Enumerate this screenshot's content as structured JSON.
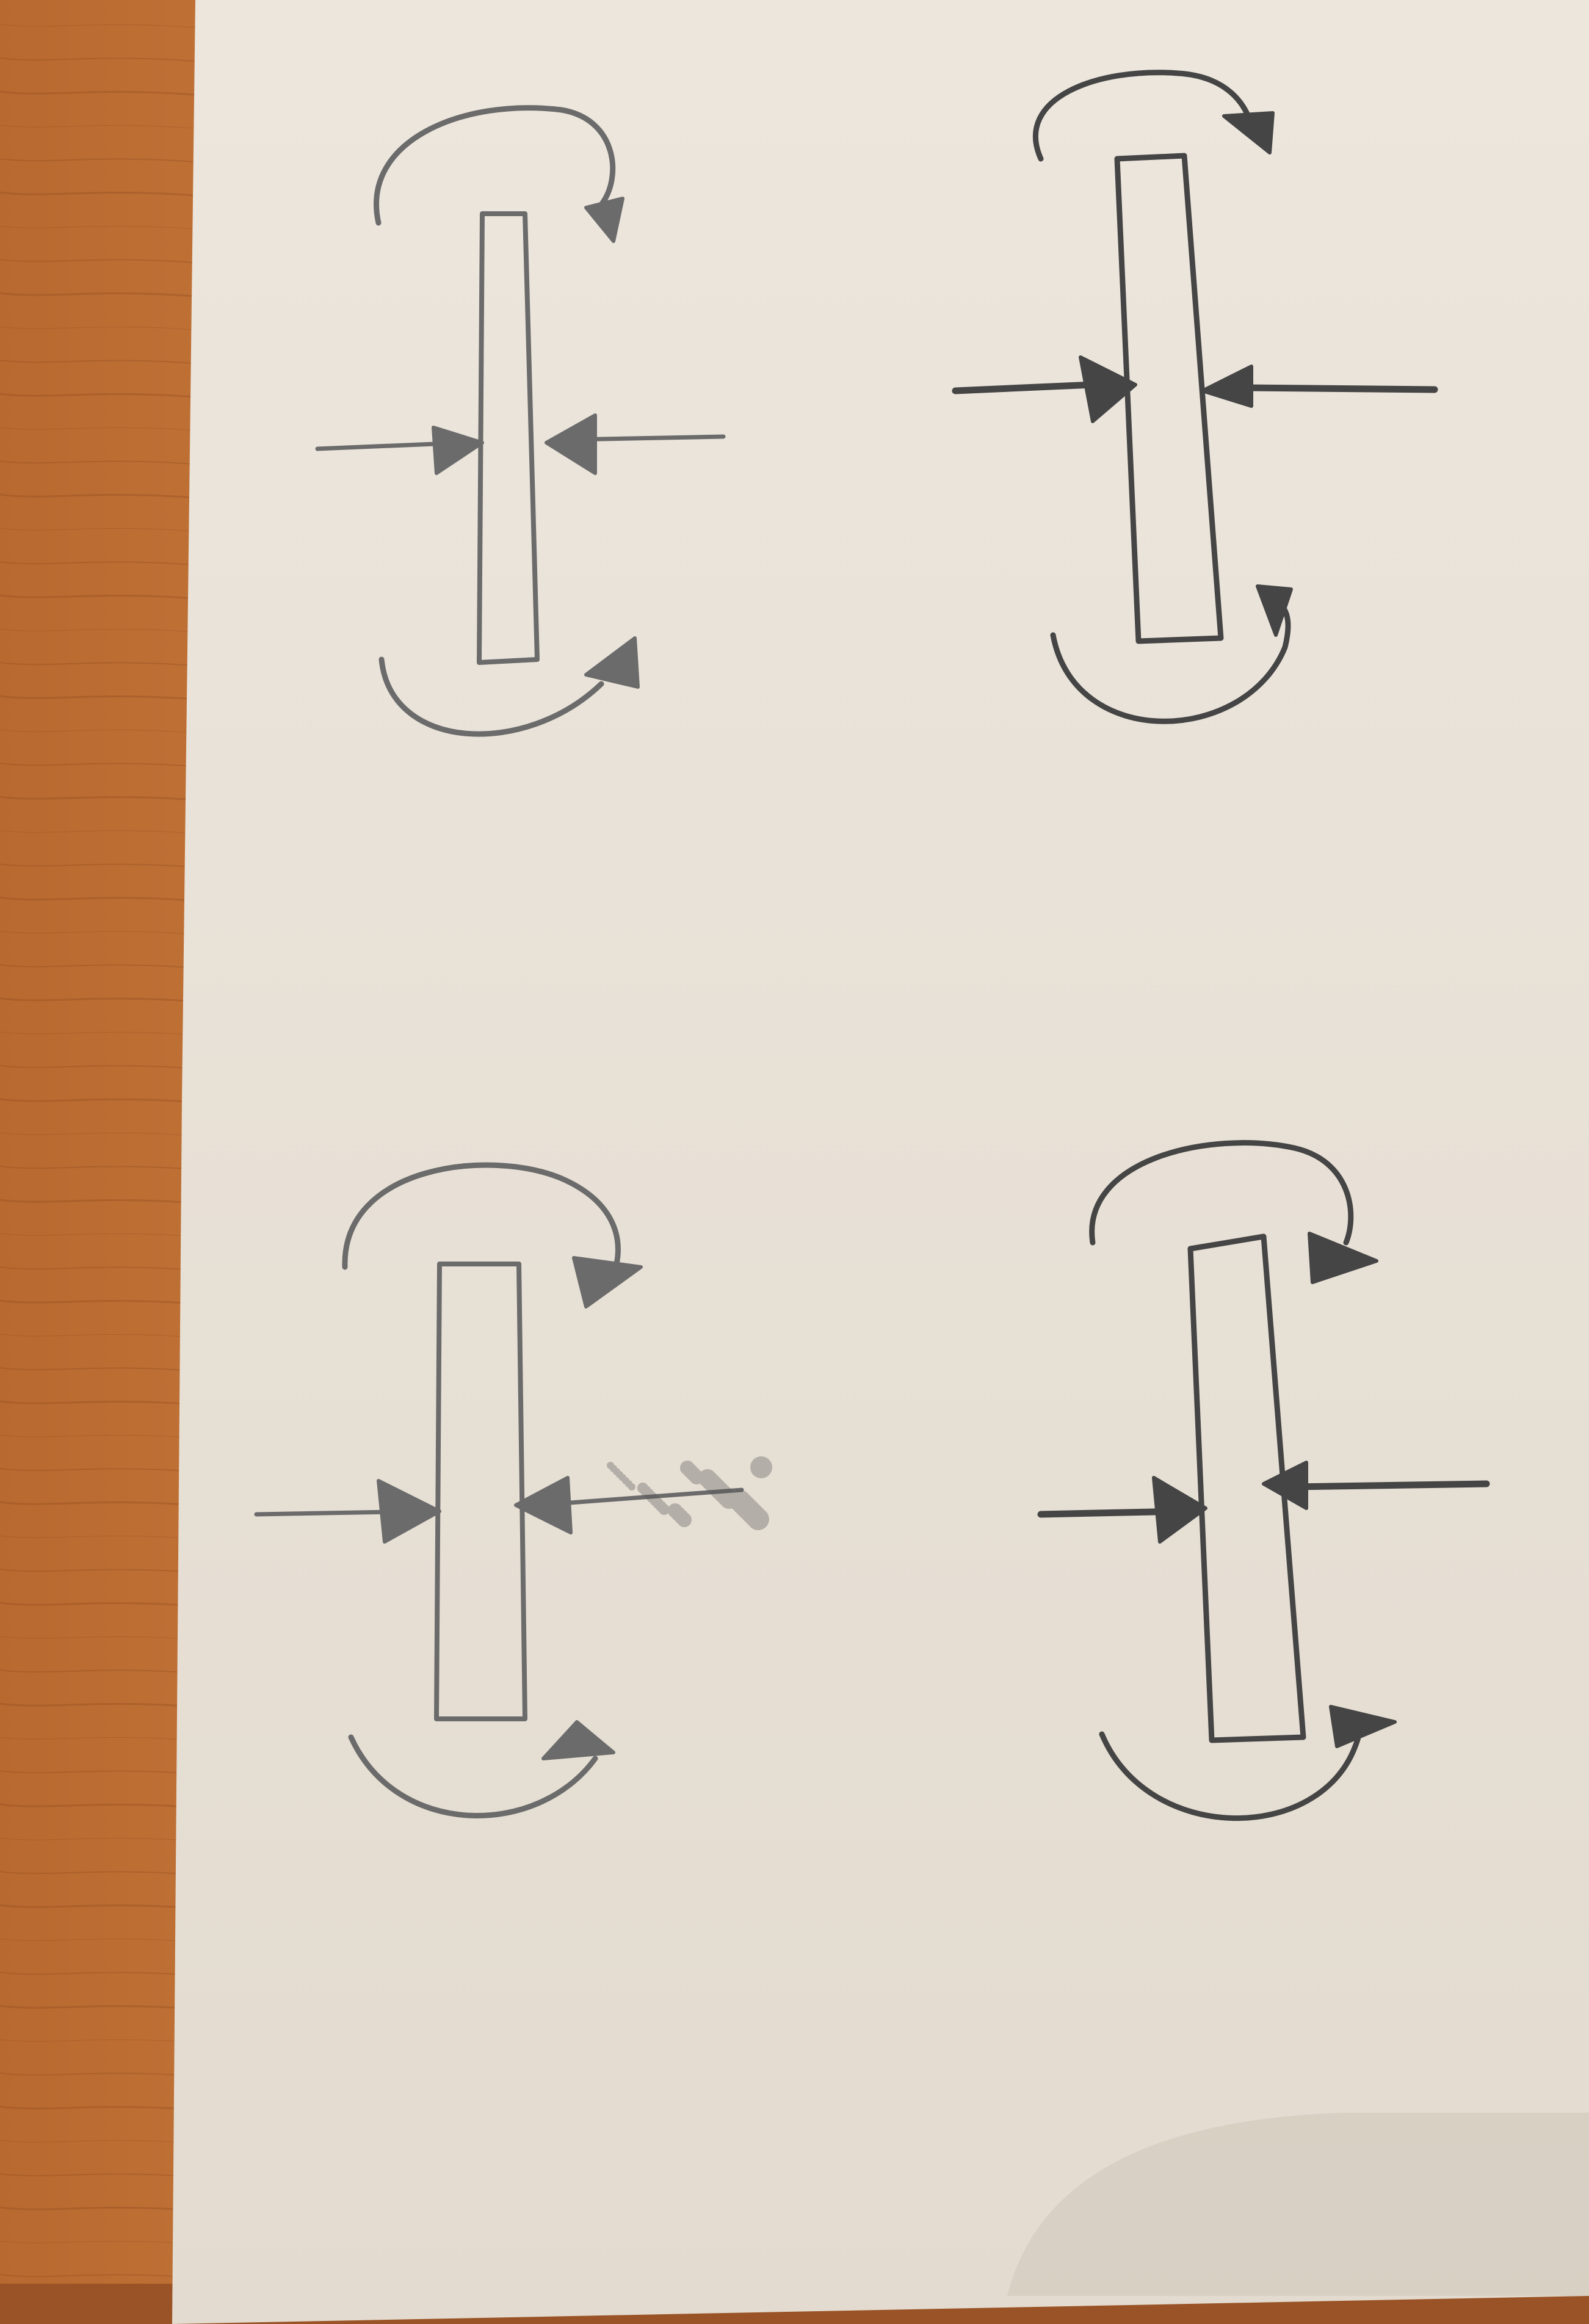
{
  "scene": {
    "background": {
      "name": "wooden-table"
    },
    "paper": {
      "name": "paper-sheet"
    },
    "colors": {
      "wood_light": "#c47a3e",
      "wood_dark": "#8e4a1f",
      "paper": "#e9e2d8",
      "paper_shadow": "#cfc6b9",
      "pencil": "#6b6b6b",
      "pencil_dark": "#454545"
    }
  },
  "diagrams": [
    {
      "id": "top-left",
      "darkness": "light"
    },
    {
      "id": "top-right",
      "darkness": "dark"
    },
    {
      "id": "bottom-left",
      "darkness": "light"
    },
    {
      "id": "bottom-right",
      "darkness": "dark"
    }
  ]
}
